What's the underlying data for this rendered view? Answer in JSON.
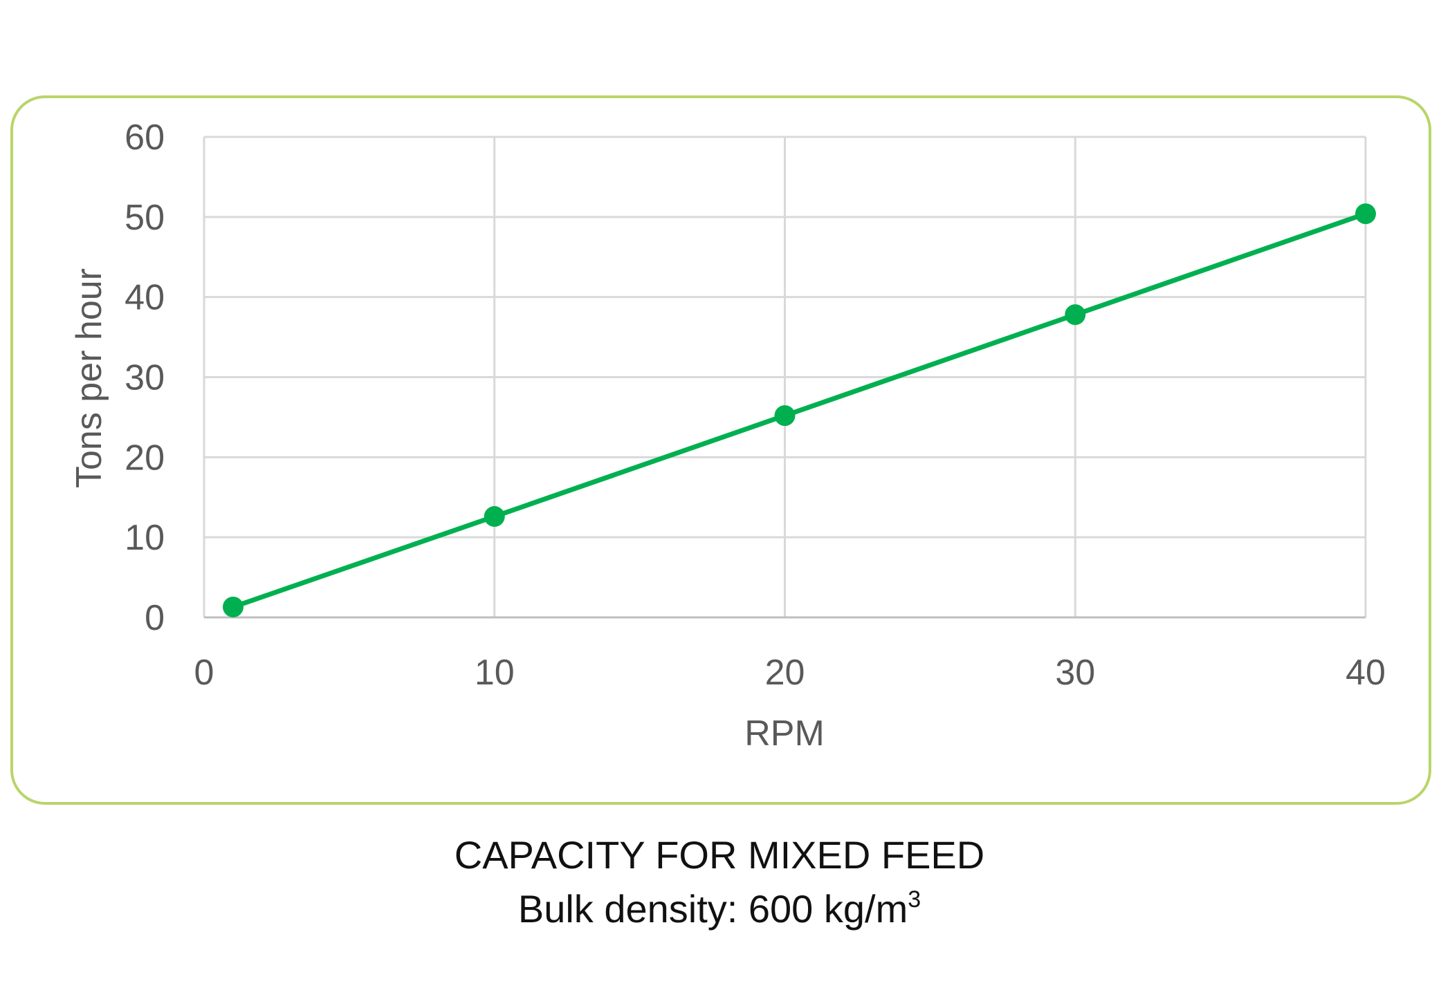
{
  "colors": {
    "frame_border": "#b8d56a",
    "grid": "#d9d9d9",
    "axis": "#bfbfbf",
    "series": "#00b050",
    "tick_text": "#595959",
    "caption_text": "#111111"
  },
  "caption": {
    "title": "CAPACITY FOR MIXED FEED",
    "subtitle_main": "Bulk density: 600 kg/m",
    "subtitle_sup": "3"
  },
  "chart_data": {
    "type": "line",
    "xlabel": "RPM",
    "ylabel": "Tons per hour",
    "xlim": [
      0,
      40
    ],
    "ylim": [
      0,
      60
    ],
    "x_ticks": [
      "0",
      "10",
      "20",
      "30",
      "40"
    ],
    "y_ticks": [
      "0",
      "10",
      "20",
      "30",
      "40",
      "50",
      "60"
    ],
    "grid": true,
    "markers": true,
    "series": [
      {
        "x": [
          1,
          10,
          20,
          30,
          40
        ],
        "values": [
          1.3,
          12.6,
          25.2,
          37.8,
          50.4
        ]
      }
    ]
  }
}
